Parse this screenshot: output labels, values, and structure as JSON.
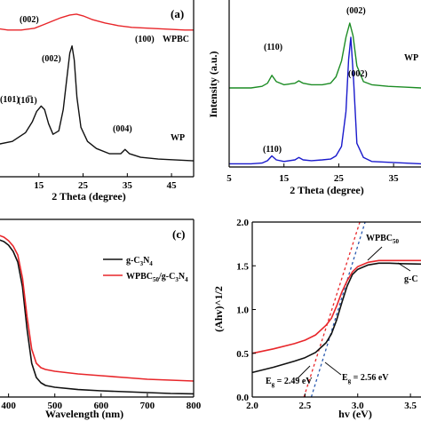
{
  "chart_data": [
    {
      "type": "line",
      "panel_label": "(a)",
      "xlabel": "2 Theta (degree)",
      "xticks": [
        "15",
        "25",
        "35",
        "45"
      ],
      "xlim": [
        5,
        50
      ],
      "ylim": [
        0,
        1.0
      ],
      "series": [
        {
          "name": "WPBC",
          "color": "#e8262a",
          "x": [
            5,
            8,
            11,
            14,
            16,
            18,
            20,
            22,
            23.5,
            25,
            27,
            30,
            33,
            36,
            40,
            44,
            48,
            50
          ],
          "y": [
            0.84,
            0.83,
            0.83,
            0.84,
            0.86,
            0.88,
            0.9,
            0.915,
            0.92,
            0.91,
            0.89,
            0.87,
            0.855,
            0.845,
            0.84,
            0.835,
            0.83,
            0.83
          ]
        },
        {
          "name": "WP",
          "color": "#111111",
          "x": [
            5,
            9,
            12,
            13.5,
            14.5,
            15.5,
            16.3,
            17.2,
            18.2,
            19.5,
            20.5,
            21.3,
            22,
            22.5,
            23,
            23.6,
            24.5,
            26,
            28,
            31,
            33.5,
            34.5,
            35.5,
            38,
            42,
            46,
            50
          ],
          "y": [
            0.18,
            0.2,
            0.25,
            0.31,
            0.37,
            0.4,
            0.38,
            0.3,
            0.24,
            0.26,
            0.38,
            0.55,
            0.7,
            0.74,
            0.66,
            0.45,
            0.28,
            0.2,
            0.16,
            0.13,
            0.13,
            0.155,
            0.13,
            0.11,
            0.1,
            0.095,
            0.09
          ]
        }
      ],
      "annotations": [
        "(002)",
        "(100)",
        "WPBC",
        "(002)",
        "(101)",
        "(10̅1)",
        "(004)",
        "WP"
      ]
    },
    {
      "type": "line",
      "panel_label": "",
      "xlabel": "2 Theta (degree)",
      "ylabel": "Intensity (a.u.)",
      "xticks": [
        "5",
        "15",
        "25",
        "35"
      ],
      "xlim": [
        5,
        40
      ],
      "ylim": [
        0,
        1.0
      ],
      "series": [
        {
          "name": "WPBC",
          "color": "#1c8c24",
          "x": [
            5,
            9,
            11,
            12,
            12.8,
            13.6,
            15,
            17,
            17.7,
            18.5,
            20,
            22,
            23.5,
            24.5,
            25.5,
            26.3,
            27,
            27.6,
            28.3,
            29.5,
            31,
            34,
            37,
            40
          ],
          "y": [
            0.5,
            0.5,
            0.51,
            0.53,
            0.58,
            0.54,
            0.52,
            0.53,
            0.545,
            0.53,
            0.52,
            0.52,
            0.53,
            0.57,
            0.67,
            0.82,
            0.91,
            0.83,
            0.64,
            0.54,
            0.52,
            0.51,
            0.505,
            0.5
          ]
        },
        {
          "name": "",
          "color": "#1a1acc",
          "x": [
            5,
            9,
            11,
            12,
            12.8,
            13.6,
            15,
            17,
            17.7,
            18.5,
            20,
            22,
            23.5,
            24.5,
            25.5,
            26.3,
            26.8,
            27.2,
            27.7,
            28.3,
            29.5,
            31,
            34,
            37,
            40
          ],
          "y": [
            0.02,
            0.02,
            0.025,
            0.04,
            0.07,
            0.045,
            0.035,
            0.045,
            0.06,
            0.045,
            0.04,
            0.045,
            0.05,
            0.07,
            0.13,
            0.35,
            0.68,
            0.82,
            0.55,
            0.15,
            0.06,
            0.035,
            0.03,
            0.025,
            0.02
          ]
        }
      ],
      "annotations": [
        "(002)",
        "(110)",
        "WP",
        "(002)",
        "(110)"
      ]
    },
    {
      "type": "line",
      "panel_label": "(c)",
      "xlabel": "Wavelength (nm)",
      "xticks": [
        "400",
        "500",
        "600",
        "700",
        "800"
      ],
      "xlim": [
        370,
        800
      ],
      "ylim": [
        0,
        1.0
      ],
      "legend_placement": "top-right",
      "series": [
        {
          "name": "g-C3N4",
          "color": "#111111",
          "x": [
            370,
            380,
            390,
            400,
            410,
            420,
            430,
            440,
            450,
            460,
            470,
            480,
            500,
            550,
            600,
            650,
            700,
            750,
            800
          ],
          "y": [
            0.885,
            0.885,
            0.875,
            0.855,
            0.82,
            0.76,
            0.62,
            0.38,
            0.19,
            0.11,
            0.08,
            0.065,
            0.055,
            0.042,
            0.035,
            0.03,
            0.025,
            0.02,
            0.018
          ]
        },
        {
          "name": "WPBC50/g-C3N4",
          "color": "#e8262a",
          "x": [
            370,
            380,
            390,
            400,
            410,
            420,
            430,
            440,
            450,
            460,
            470,
            480,
            500,
            550,
            600,
            650,
            700,
            750,
            800
          ],
          "y": [
            0.91,
            0.91,
            0.9,
            0.88,
            0.85,
            0.8,
            0.67,
            0.45,
            0.27,
            0.19,
            0.165,
            0.155,
            0.145,
            0.13,
            0.12,
            0.11,
            0.1,
            0.095,
            0.09
          ]
        }
      ]
    },
    {
      "type": "line",
      "panel_label": "",
      "xlabel": "hv (eV)",
      "ylabel": "(Ahv)^1/2",
      "xticks": [
        "2.0",
        "2.5",
        "3.0",
        "3.5"
      ],
      "yticks": [
        "0.0",
        "0.5",
        "1.0",
        "1.5",
        "2.0"
      ],
      "xlim": [
        2.0,
        3.6
      ],
      "ylim": [
        0.0,
        2.0
      ],
      "series": [
        {
          "name": "WPBC50",
          "color": "#e8262a",
          "x": [
            2.0,
            2.2,
            2.4,
            2.5,
            2.6,
            2.7,
            2.75,
            2.8,
            2.85,
            2.9,
            2.95,
            3.0,
            3.1,
            3.2,
            3.4,
            3.6
          ],
          "y": [
            0.5,
            0.55,
            0.61,
            0.65,
            0.71,
            0.82,
            0.9,
            1.04,
            1.2,
            1.33,
            1.43,
            1.49,
            1.54,
            1.56,
            1.56,
            1.56
          ]
        },
        {
          "name": "g-C",
          "color": "#111111",
          "x": [
            2.0,
            2.2,
            2.4,
            2.5,
            2.6,
            2.7,
            2.75,
            2.8,
            2.85,
            2.9,
            2.95,
            3.0,
            3.1,
            3.2,
            3.3,
            3.4,
            3.6
          ],
          "y": [
            0.28,
            0.34,
            0.41,
            0.45,
            0.51,
            0.62,
            0.72,
            0.88,
            1.08,
            1.27,
            1.4,
            1.46,
            1.51,
            1.53,
            1.53,
            1.525,
            1.52
          ]
        }
      ],
      "tangents": [
        {
          "color": "#e8262a",
          "x": [
            2.49,
            3.02
          ],
          "y": [
            0.0,
            2.0
          ]
        },
        {
          "color": "#2a5ab0",
          "x": [
            2.56,
            3.07
          ],
          "y": [
            0.0,
            2.0
          ]
        }
      ],
      "annotations": [
        "E_g = 2.49 eV",
        "E_g = 2.56 eV"
      ]
    }
  ]
}
